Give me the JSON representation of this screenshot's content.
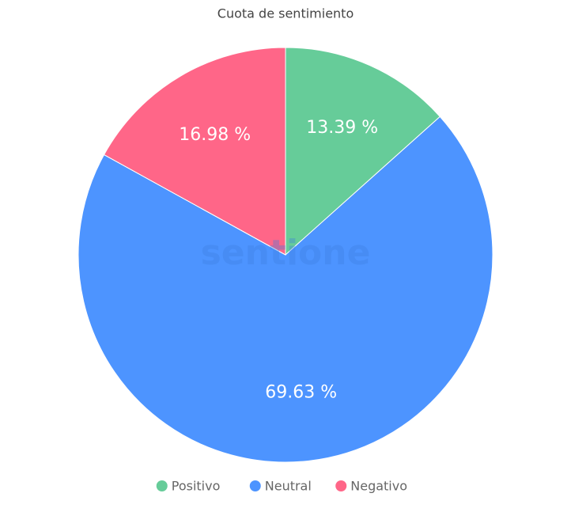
{
  "chart_data": {
    "type": "pie",
    "title": "Cuota de sentimiento",
    "watermark": "sentione",
    "series": [
      {
        "name": "Positivo",
        "color": "#66cc99",
        "values": [
          13.39
        ],
        "value_labels": [
          "13.39 %"
        ]
      },
      {
        "name": "Neutral",
        "color": "#4d94ff",
        "values": [
          69.63
        ],
        "value_labels": [
          "69.63 %"
        ]
      },
      {
        "name": "Negativo",
        "color": "#ff6688",
        "values": [
          16.98
        ],
        "value_labels": [
          "16.98 %"
        ]
      }
    ],
    "legend": "bottom"
  }
}
